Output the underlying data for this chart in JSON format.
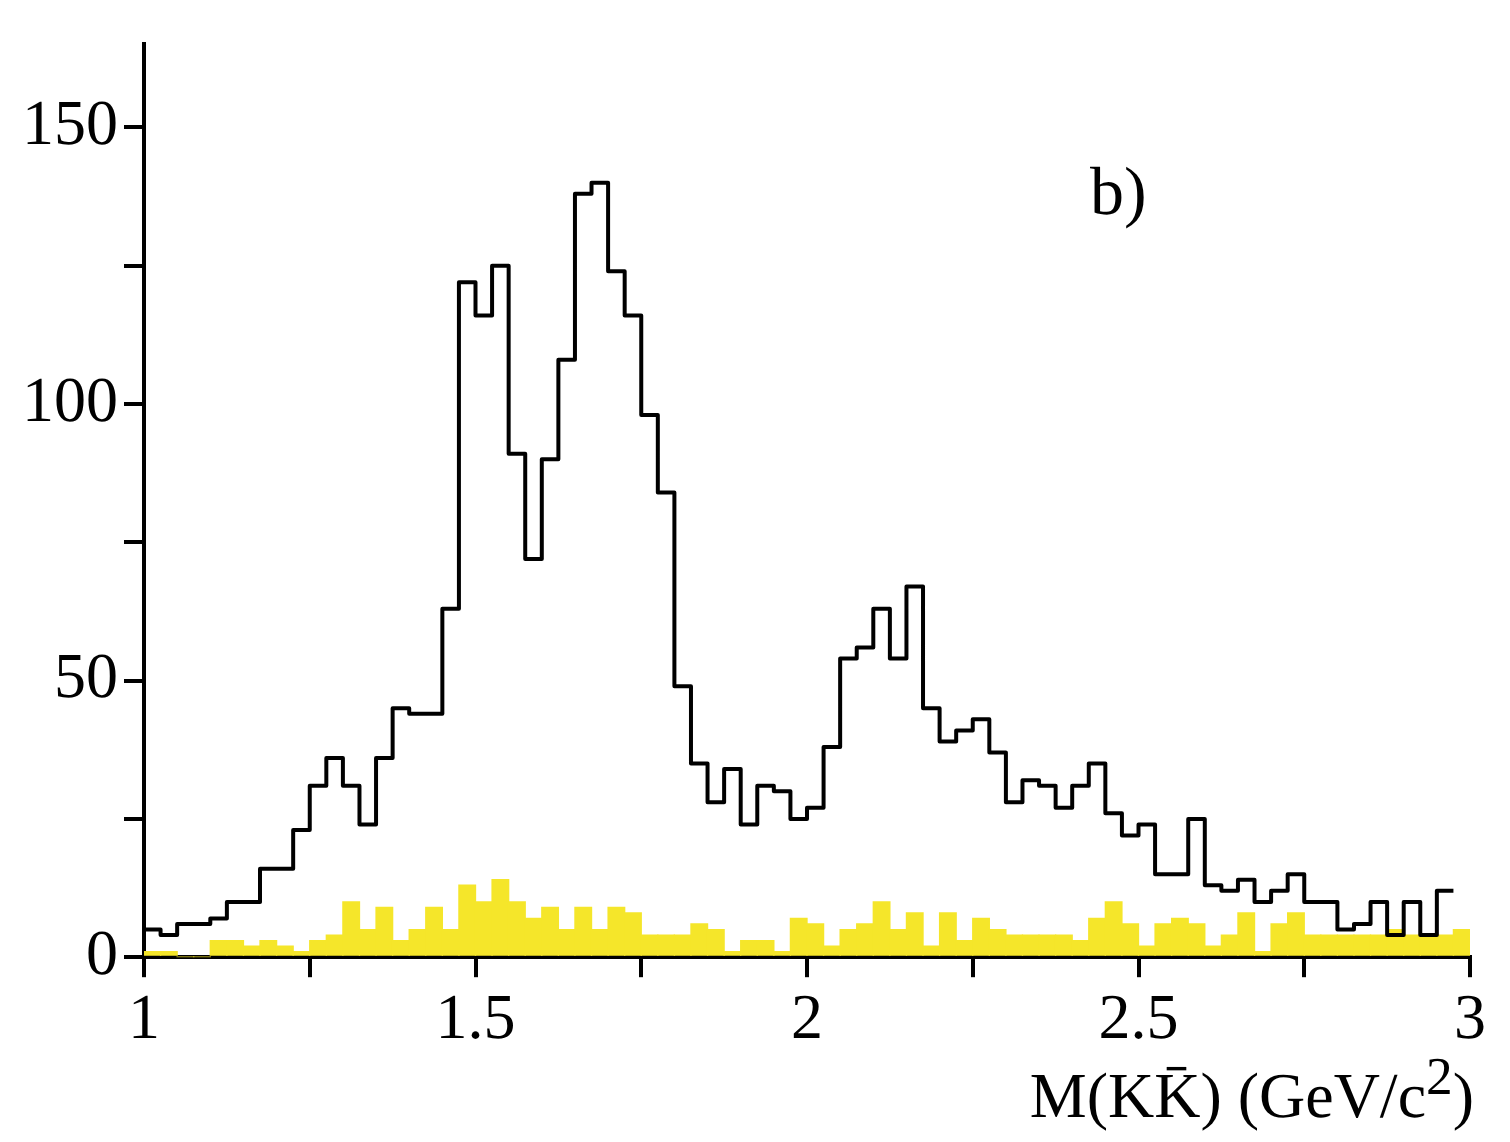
{
  "chart_data": {
    "type": "histogram",
    "xlabel": "M(KK̄) (GeV/c$^{2}$)",
    "annotations": [
      "b)"
    ],
    "bins": [
      1,
      1.025,
      1.05,
      1.075,
      1.1,
      1.125,
      1.15,
      1.175,
      1.2,
      1.225,
      1.25,
      1.275,
      1.3,
      1.325,
      1.35,
      1.375,
      1.4,
      1.425,
      1.45,
      1.475,
      1.5,
      1.525,
      1.55,
      1.575,
      1.6,
      1.625,
      1.65,
      1.675,
      1.7,
      1.725,
      1.75,
      1.775,
      1.8,
      1.825,
      1.85,
      1.875,
      1.9,
      1.925,
      1.95,
      1.975,
      2,
      2.025,
      2.05,
      2.075,
      2.1,
      2.125,
      2.15,
      2.175,
      2.2,
      2.225,
      2.25,
      2.275,
      2.3,
      2.325,
      2.35,
      2.375,
      2.4,
      2.425,
      2.45,
      2.475,
      2.5,
      2.525,
      2.55,
      2.575,
      2.6,
      2.625,
      2.65,
      2.675,
      2.7,
      2.725,
      2.75,
      2.775,
      2.8,
      2.825,
      2.85,
      2.875,
      2.9,
      2.925,
      2.95,
      2.975,
      3
    ],
    "series": [
      {
        "color": "#f5e62a",
        "values": [
          1,
          1,
          0,
          0,
          3,
          3,
          2,
          3,
          2,
          1,
          3,
          4,
          10,
          5,
          9,
          3,
          5,
          9,
          5,
          13,
          10,
          14,
          10,
          7,
          9,
          5,
          9,
          5,
          9,
          8,
          4,
          4,
          4,
          6,
          5,
          1,
          3,
          3,
          1,
          7,
          6,
          2,
          5,
          6,
          10,
          5,
          8,
          2,
          8,
          3,
          7,
          5,
          4,
          4,
          4,
          4,
          3,
          7,
          10,
          6,
          2,
          6,
          7,
          6,
          2,
          4,
          8,
          1,
          6,
          8,
          4,
          4,
          4,
          4,
          4,
          5,
          4,
          4,
          4,
          5
        ]
      },
      {
        "type": "step",
        "color": "#000000",
        "x": [
          1,
          1.025,
          1.05,
          1.075,
          1.1,
          1.125,
          1.15,
          1.175,
          1.2,
          1.225,
          1.25,
          1.275,
          1.3,
          1.325,
          1.35,
          1.375,
          1.4,
          1.425,
          1.45,
          1.475,
          1.5,
          1.525,
          1.55,
          1.575,
          1.6,
          1.625,
          1.65,
          1.675,
          1.7,
          1.725,
          1.75,
          1.775,
          1.8,
          1.825,
          1.85,
          1.875,
          1.9,
          1.925,
          1.95,
          1.975,
          2,
          2.025,
          2.05,
          2.075,
          2.1,
          2.125,
          2.15,
          2.175,
          2.2,
          2.225,
          2.25,
          2.275,
          2.3,
          2.325,
          2.35,
          2.375,
          2.4,
          2.425,
          2.45,
          2.475,
          2.5,
          2.525,
          2.55,
          2.575,
          2.6,
          2.625,
          2.65,
          2.675,
          2.7,
          2.725,
          2.75,
          2.775,
          2.8,
          2.825,
          2.85,
          2.875,
          2.9,
          2.925,
          2.95,
          2.975
        ],
        "values": [
          4,
          5,
          4,
          6,
          6,
          7,
          10,
          10,
          16,
          16,
          23,
          31,
          36,
          31,
          24,
          36,
          45,
          44,
          44,
          63,
          122,
          116,
          125,
          91,
          72,
          90,
          108,
          138,
          140,
          124,
          116,
          98,
          84,
          49,
          35,
          28,
          34,
          24,
          31,
          30,
          25,
          27,
          38,
          54,
          56,
          63,
          54,
          67,
          45,
          39,
          41,
          43,
          37,
          28,
          32,
          31,
          27,
          31,
          35,
          26,
          22,
          24,
          15,
          15,
          25,
          13,
          12,
          14,
          10,
          12,
          15,
          10,
          10,
          5,
          6,
          10,
          4,
          10,
          4,
          12
        ]
      }
    ],
    "xlim": [
      1,
      3
    ],
    "xticks": [
      1,
      {
        "value": 1.25,
        "label": null
      },
      1.5,
      {
        "value": 1.75,
        "label": null
      },
      2,
      {
        "value": 2.25,
        "label": null
      },
      2.5,
      {
        "value": 2.75,
        "label": null
      },
      3
    ],
    "ylim": [
      0,
      165
    ],
    "yticks": [
      0,
      {
        "value": 25,
        "label": null
      },
      50,
      {
        "value": 75,
        "label": null
      },
      100,
      {
        "value": 125,
        "label": null
      },
      150
    ],
    "legend": false
  }
}
